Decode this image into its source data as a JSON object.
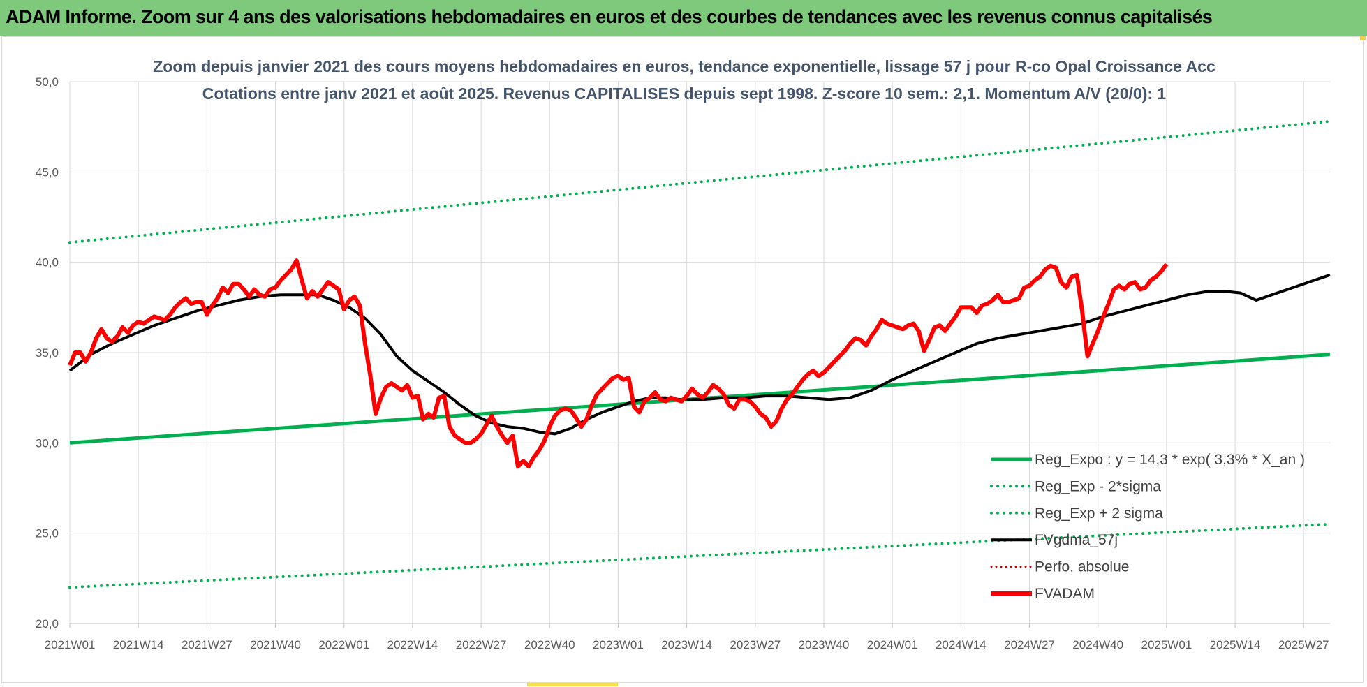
{
  "banner": {
    "title": "ADAM Informe. Zoom sur 4 ans des valorisations hebdomadaires en euros et des courbes de tendances avec les revenus connus capitalisés"
  },
  "colors": {
    "banner": "#7fc97c",
    "trend": "#00b050",
    "trend_band": "#00b050",
    "fvgdma": "#000000",
    "perfo": "#c00000",
    "fvadam": "#ff0000",
    "title_text": "#44546a"
  },
  "chart_data": {
    "type": "line",
    "title_lines": [
      "Zoom depuis janvier 2021 des cours moyens hebdomadaires en euros, tendance exponentielle, lissage 57 j pour R-co Opal Croissance Acc",
      "Cotations entre janv 2021 et août 2025. Revenus CAPITALISES depuis sept 1998. Z-score 10 sem.: 2,1. Momentum A/V (20/0): 1"
    ],
    "ylim": [
      20,
      50
    ],
    "y_ticks": [
      "20,0",
      "25,0",
      "30,0",
      "35,0",
      "40,0",
      "45,0",
      "50,0"
    ],
    "x_tick_labels": [
      "2021W01",
      "2021W14",
      "2021W27",
      "2021W40",
      "2022W01",
      "2022W14",
      "2022W27",
      "2022W40",
      "2023W01",
      "2023W14",
      "2023W27",
      "2023W40",
      "2024W01",
      "2024W14",
      "2024W27",
      "2024W40",
      "2025W01",
      "2025W14",
      "2025W27"
    ],
    "x_tick_weeks": [
      0,
      13,
      26,
      39,
      52,
      65,
      78,
      91,
      104,
      117,
      130,
      143,
      156,
      169,
      182,
      195,
      208,
      221,
      234
    ],
    "x_range_weeks": [
      0,
      239
    ],
    "grid": "vertical and horizontal",
    "legend_position": "bottom-right",
    "series": [
      {
        "name": "Reg_Expo : y = 14,3 * exp( 3,3% *  X_an )",
        "style": "solid-thick",
        "points": [
          [
            0,
            30.0
          ],
          [
            239,
            34.9
          ]
        ]
      },
      {
        "name": "Reg_Exp - 2*sigma",
        "style": "dotted",
        "points": [
          [
            0,
            22.0
          ],
          [
            239,
            25.5
          ]
        ]
      },
      {
        "name": "Reg_Exp + 2 sigma",
        "style": "dotted",
        "points": [
          [
            0,
            41.1
          ],
          [
            239,
            47.8
          ]
        ]
      },
      {
        "name": "FVgdma_57j",
        "style": "solid",
        "points": [
          [
            0,
            34.0
          ],
          [
            4,
            34.9
          ],
          [
            8,
            35.5
          ],
          [
            12,
            36.0
          ],
          [
            16,
            36.5
          ],
          [
            20,
            36.9
          ],
          [
            24,
            37.3
          ],
          [
            28,
            37.6
          ],
          [
            32,
            37.9
          ],
          [
            36,
            38.1
          ],
          [
            40,
            38.2
          ],
          [
            44,
            38.2
          ],
          [
            47,
            38.2
          ],
          [
            50,
            37.9
          ],
          [
            53,
            37.5
          ],
          [
            56,
            36.9
          ],
          [
            59,
            36.0
          ],
          [
            62,
            34.8
          ],
          [
            65,
            34.0
          ],
          [
            68,
            33.4
          ],
          [
            71,
            32.8
          ],
          [
            74,
            32.1
          ],
          [
            77,
            31.5
          ],
          [
            80,
            31.1
          ],
          [
            83,
            30.9
          ],
          [
            86,
            30.8
          ],
          [
            89,
            30.6
          ],
          [
            92,
            30.5
          ],
          [
            95,
            30.8
          ],
          [
            98,
            31.3
          ],
          [
            101,
            31.7
          ],
          [
            104,
            32.0
          ],
          [
            107,
            32.3
          ],
          [
            110,
            32.5
          ],
          [
            113,
            32.5
          ],
          [
            116,
            32.4
          ],
          [
            120,
            32.4
          ],
          [
            124,
            32.5
          ],
          [
            128,
            32.5
          ],
          [
            132,
            32.6
          ],
          [
            136,
            32.6
          ],
          [
            140,
            32.5
          ],
          [
            144,
            32.4
          ],
          [
            148,
            32.5
          ],
          [
            152,
            32.9
          ],
          [
            156,
            33.5
          ],
          [
            160,
            34.0
          ],
          [
            164,
            34.5
          ],
          [
            168,
            35.0
          ],
          [
            172,
            35.5
          ],
          [
            176,
            35.8
          ],
          [
            180,
            36.0
          ],
          [
            184,
            36.2
          ],
          [
            188,
            36.4
          ],
          [
            192,
            36.6
          ],
          [
            196,
            37.0
          ],
          [
            200,
            37.3
          ],
          [
            204,
            37.6
          ],
          [
            208,
            37.9
          ],
          [
            212,
            38.2
          ],
          [
            216,
            38.4
          ],
          [
            219,
            38.4
          ],
          [
            222,
            38.3
          ],
          [
            225,
            37.9
          ],
          [
            228,
            38.2
          ],
          [
            232,
            38.6
          ],
          [
            236,
            39.0
          ],
          [
            239,
            39.3
          ]
        ]
      },
      {
        "name": "Perfo. absolue",
        "style": "dotted",
        "points": []
      },
      {
        "name": "FVADAM",
        "style": "solid-thick",
        "points": [
          [
            0,
            34.3
          ],
          [
            1,
            35.0
          ],
          [
            2,
            35.0
          ],
          [
            3,
            34.5
          ],
          [
            4,
            35.0
          ],
          [
            5,
            35.8
          ],
          [
            6,
            36.3
          ],
          [
            7,
            35.8
          ],
          [
            8,
            35.6
          ],
          [
            9,
            35.9
          ],
          [
            10,
            36.4
          ],
          [
            11,
            36.1
          ],
          [
            12,
            36.5
          ],
          [
            13,
            36.7
          ],
          [
            14,
            36.6
          ],
          [
            15,
            36.8
          ],
          [
            16,
            37.0
          ],
          [
            17,
            36.9
          ],
          [
            18,
            36.8
          ],
          [
            19,
            37.1
          ],
          [
            20,
            37.5
          ],
          [
            21,
            37.8
          ],
          [
            22,
            38.0
          ],
          [
            23,
            37.7
          ],
          [
            24,
            37.8
          ],
          [
            25,
            37.8
          ],
          [
            26,
            37.1
          ],
          [
            27,
            37.6
          ],
          [
            28,
            38.0
          ],
          [
            29,
            38.6
          ],
          [
            30,
            38.3
          ],
          [
            31,
            38.8
          ],
          [
            32,
            38.8
          ],
          [
            33,
            38.5
          ],
          [
            34,
            38.1
          ],
          [
            35,
            38.5
          ],
          [
            36,
            38.2
          ],
          [
            37,
            38.1
          ],
          [
            38,
            38.5
          ],
          [
            39,
            38.6
          ],
          [
            40,
            39.0
          ],
          [
            41,
            39.3
          ],
          [
            42,
            39.6
          ],
          [
            43,
            40.1
          ],
          [
            44,
            39.0
          ],
          [
            45,
            38.0
          ],
          [
            46,
            38.4
          ],
          [
            47,
            38.1
          ],
          [
            48,
            38.5
          ],
          [
            49,
            38.9
          ],
          [
            50,
            38.7
          ],
          [
            51,
            38.5
          ],
          [
            52,
            37.4
          ],
          [
            53,
            37.9
          ],
          [
            54,
            38.1
          ],
          [
            55,
            37.6
          ],
          [
            56,
            35.5
          ],
          [
            57,
            33.7
          ],
          [
            58,
            31.6
          ],
          [
            59,
            32.5
          ],
          [
            60,
            33.1
          ],
          [
            61,
            33.3
          ],
          [
            62,
            33.1
          ],
          [
            63,
            32.9
          ],
          [
            64,
            33.2
          ],
          [
            65,
            32.5
          ],
          [
            66,
            32.6
          ],
          [
            67,
            31.3
          ],
          [
            68,
            31.6
          ],
          [
            69,
            31.4
          ],
          [
            70,
            32.5
          ],
          [
            71,
            32.6
          ],
          [
            72,
            30.9
          ],
          [
            73,
            30.4
          ],
          [
            74,
            30.2
          ],
          [
            75,
            30.0
          ],
          [
            76,
            30.0
          ],
          [
            77,
            30.2
          ],
          [
            78,
            30.5
          ],
          [
            79,
            31.0
          ],
          [
            80,
            31.5
          ],
          [
            81,
            30.9
          ],
          [
            82,
            30.4
          ],
          [
            83,
            30.0
          ],
          [
            84,
            30.4
          ],
          [
            85,
            28.7
          ],
          [
            86,
            29.0
          ],
          [
            87,
            28.7
          ],
          [
            88,
            29.2
          ],
          [
            89,
            29.6
          ],
          [
            90,
            30.1
          ],
          [
            91,
            30.9
          ],
          [
            92,
            31.5
          ],
          [
            93,
            31.8
          ],
          [
            94,
            31.9
          ],
          [
            95,
            31.8
          ],
          [
            96,
            31.4
          ],
          [
            97,
            30.9
          ],
          [
            98,
            31.3
          ],
          [
            99,
            32.1
          ],
          [
            100,
            32.7
          ],
          [
            101,
            33.0
          ],
          [
            102,
            33.3
          ],
          [
            103,
            33.6
          ],
          [
            104,
            33.7
          ],
          [
            105,
            33.5
          ],
          [
            106,
            33.6
          ],
          [
            107,
            32.0
          ],
          [
            108,
            31.7
          ],
          [
            109,
            32.3
          ],
          [
            110,
            32.5
          ],
          [
            111,
            32.8
          ],
          [
            112,
            32.4
          ],
          [
            113,
            32.3
          ],
          [
            114,
            32.5
          ],
          [
            115,
            32.4
          ],
          [
            116,
            32.3
          ],
          [
            117,
            32.6
          ],
          [
            118,
            33.0
          ],
          [
            119,
            32.7
          ],
          [
            120,
            32.5
          ],
          [
            121,
            32.8
          ],
          [
            122,
            33.2
          ],
          [
            123,
            33.0
          ],
          [
            124,
            32.7
          ],
          [
            125,
            32.1
          ],
          [
            126,
            31.9
          ],
          [
            127,
            32.4
          ],
          [
            128,
            32.4
          ],
          [
            129,
            32.3
          ],
          [
            130,
            32.0
          ],
          [
            131,
            31.6
          ],
          [
            132,
            31.4
          ],
          [
            133,
            30.9
          ],
          [
            134,
            31.2
          ],
          [
            135,
            31.9
          ],
          [
            136,
            32.4
          ],
          [
            137,
            32.7
          ],
          [
            138,
            33.1
          ],
          [
            139,
            33.5
          ],
          [
            140,
            33.8
          ],
          [
            141,
            34.0
          ],
          [
            142,
            33.7
          ],
          [
            143,
            33.9
          ],
          [
            144,
            34.2
          ],
          [
            145,
            34.5
          ],
          [
            146,
            34.8
          ],
          [
            147,
            35.1
          ],
          [
            148,
            35.5
          ],
          [
            149,
            35.8
          ],
          [
            150,
            35.7
          ],
          [
            151,
            35.4
          ],
          [
            152,
            35.9
          ],
          [
            153,
            36.3
          ],
          [
            154,
            36.8
          ],
          [
            155,
            36.6
          ],
          [
            156,
            36.5
          ],
          [
            157,
            36.4
          ],
          [
            158,
            36.3
          ],
          [
            159,
            36.5
          ],
          [
            160,
            36.6
          ],
          [
            161,
            36.2
          ],
          [
            162,
            35.1
          ],
          [
            163,
            35.7
          ],
          [
            164,
            36.4
          ],
          [
            165,
            36.5
          ],
          [
            166,
            36.2
          ],
          [
            167,
            36.6
          ],
          [
            168,
            37.0
          ],
          [
            169,
            37.5
          ],
          [
            170,
            37.5
          ],
          [
            171,
            37.5
          ],
          [
            172,
            37.2
          ],
          [
            173,
            37.6
          ],
          [
            174,
            37.7
          ],
          [
            175,
            37.9
          ],
          [
            176,
            38.2
          ],
          [
            177,
            37.8
          ],
          [
            178,
            37.8
          ],
          [
            179,
            37.9
          ],
          [
            180,
            38.0
          ],
          [
            181,
            38.6
          ],
          [
            182,
            38.7
          ],
          [
            183,
            39.0
          ],
          [
            184,
            39.2
          ],
          [
            185,
            39.6
          ],
          [
            186,
            39.8
          ],
          [
            187,
            39.7
          ],
          [
            188,
            38.9
          ],
          [
            189,
            38.6
          ],
          [
            190,
            39.2
          ],
          [
            191,
            39.3
          ],
          [
            192,
            37.3
          ],
          [
            193,
            34.8
          ],
          [
            194,
            35.5
          ],
          [
            195,
            36.2
          ],
          [
            196,
            37.0
          ],
          [
            197,
            37.7
          ],
          [
            198,
            38.5
          ],
          [
            199,
            38.7
          ],
          [
            200,
            38.5
          ],
          [
            201,
            38.8
          ],
          [
            202,
            38.9
          ],
          [
            203,
            38.5
          ],
          [
            204,
            38.6
          ],
          [
            205,
            39.0
          ],
          [
            206,
            39.2
          ],
          [
            207,
            39.5
          ],
          [
            208,
            39.9
          ]
        ]
      }
    ]
  }
}
